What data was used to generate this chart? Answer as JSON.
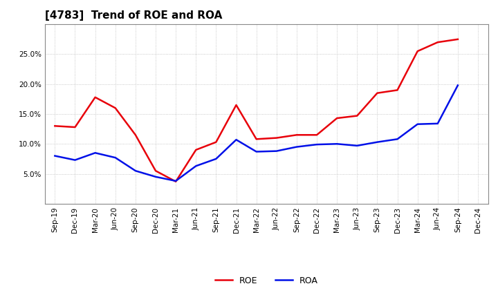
{
  "title": "[4783]  Trend of ROE and ROA",
  "x_labels": [
    "Sep-19",
    "Dec-19",
    "Mar-20",
    "Jun-20",
    "Sep-20",
    "Dec-20",
    "Mar-21",
    "Jun-21",
    "Sep-21",
    "Dec-21",
    "Mar-22",
    "Jun-22",
    "Sep-22",
    "Dec-22",
    "Mar-23",
    "Jun-23",
    "Sep-23",
    "Dec-23",
    "Mar-24",
    "Jun-24",
    "Sep-24",
    "Dec-24"
  ],
  "roe": [
    13.0,
    12.8,
    17.8,
    16.0,
    11.5,
    5.5,
    3.7,
    9.0,
    10.3,
    16.5,
    10.8,
    11.0,
    11.5,
    11.5,
    14.3,
    14.7,
    18.5,
    19.0,
    25.5,
    27.0,
    27.5,
    null
  ],
  "roa": [
    8.0,
    7.3,
    8.5,
    7.7,
    5.5,
    4.5,
    3.8,
    6.3,
    7.5,
    10.7,
    8.7,
    8.8,
    9.5,
    9.9,
    10.0,
    9.7,
    10.3,
    10.8,
    13.3,
    13.4,
    19.8,
    null
  ],
  "roe_color": "#e8000a",
  "roa_color": "#0010e8",
  "background_color": "#ffffff",
  "grid_color": "#b0b0b0",
  "ylim": [
    0,
    30
  ],
  "yticks": [
    5.0,
    10.0,
    15.0,
    20.0,
    25.0
  ],
  "title_fontsize": 11,
  "legend_fontsize": 9,
  "tick_fontsize": 7.5,
  "line_width": 1.8
}
